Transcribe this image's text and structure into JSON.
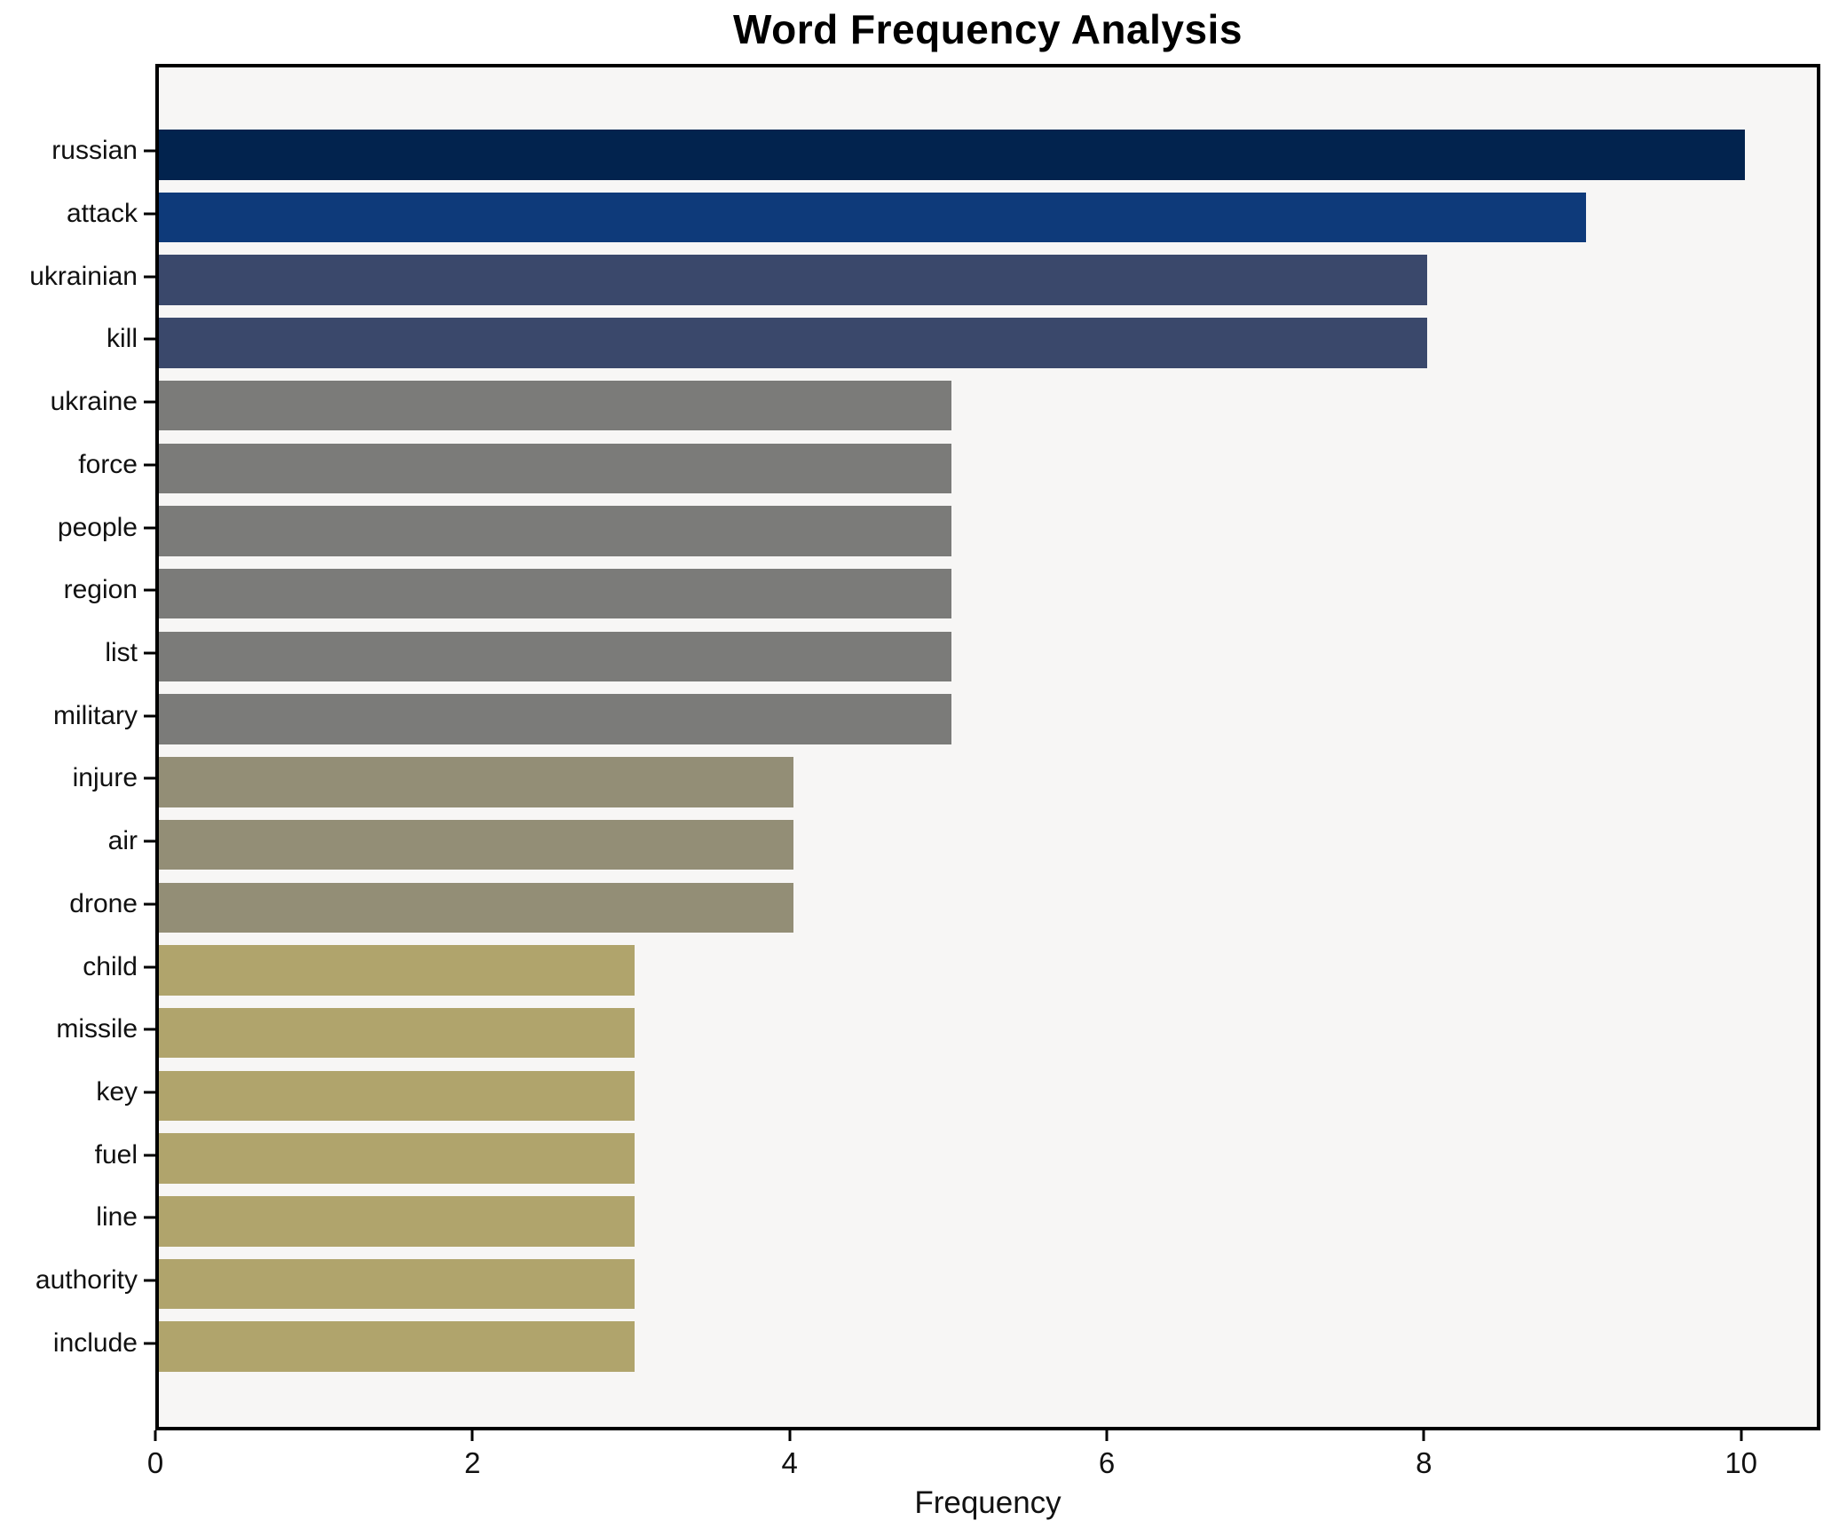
{
  "chart_data": {
    "type": "bar",
    "orientation": "horizontal",
    "title": "Word Frequency Analysis",
    "xlabel": "Frequency",
    "ylabel": "",
    "xlim": [
      0,
      10.5
    ],
    "xticks": [
      0,
      2,
      4,
      6,
      8,
      10
    ],
    "grid": false,
    "legend": false,
    "plot_background": "#f7f6f5",
    "axis_color": "#000000",
    "categories": [
      "russian",
      "attack",
      "ukrainian",
      "kill",
      "ukraine",
      "force",
      "people",
      "region",
      "list",
      "military",
      "injure",
      "air",
      "drone",
      "child",
      "missile",
      "key",
      "fuel",
      "line",
      "authority",
      "include"
    ],
    "values": [
      10,
      9,
      8,
      8,
      5,
      5,
      5,
      5,
      5,
      5,
      4,
      4,
      4,
      3,
      3,
      3,
      3,
      3,
      3,
      3
    ],
    "bar_colors": [
      "#02234e",
      "#0e3a7a",
      "#3a486b",
      "#3a486b",
      "#7b7b79",
      "#7b7b79",
      "#7b7b79",
      "#7b7b79",
      "#7b7b79",
      "#7b7b79",
      "#938e76",
      "#938e76",
      "#938e76",
      "#b0a46c",
      "#b0a46c",
      "#b0a46c",
      "#b0a46c",
      "#b0a46c",
      "#b0a46c",
      "#b0a46c"
    ]
  }
}
